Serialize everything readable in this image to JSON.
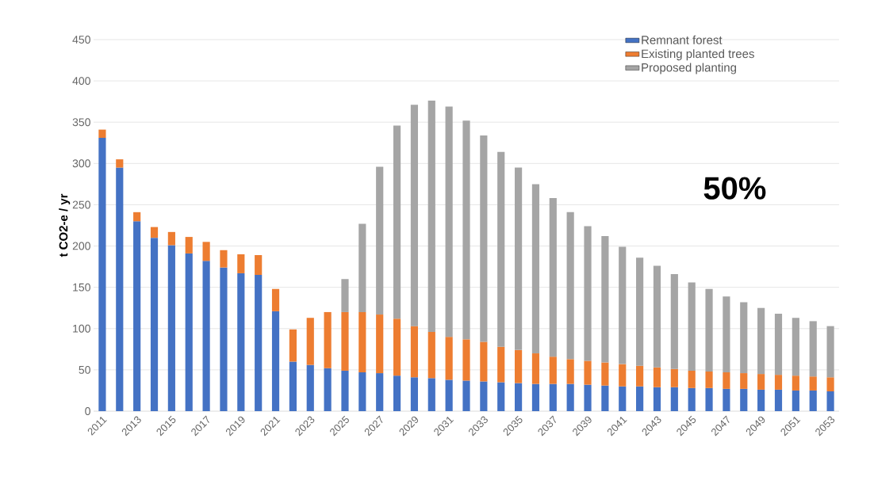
{
  "chart_data": {
    "type": "bar",
    "stacked": true,
    "ylabel": "t CO2-e  / yr",
    "categories": [
      "2011",
      null,
      "2013",
      null,
      "2015",
      null,
      "2017",
      null,
      "2019",
      null,
      "2021",
      null,
      "2023",
      null,
      "2025",
      null,
      "2027",
      null,
      "2029",
      null,
      "2031",
      null,
      "2033",
      null,
      "2035",
      null,
      "2037",
      null,
      "2039",
      null,
      "2041",
      null,
      "2043",
      null,
      "2045",
      null,
      "2047",
      null,
      "2049",
      null,
      "2051",
      null,
      "2053"
    ],
    "series": [
      {
        "name": "Remnant forest",
        "color": "#4472c4",
        "values": [
          331,
          295,
          230,
          210,
          201,
          191,
          182,
          174,
          167,
          165,
          121,
          60,
          56,
          52,
          49,
          47,
          46,
          43,
          41,
          40,
          38,
          37,
          36,
          35,
          34,
          33,
          33,
          33,
          32,
          31,
          30,
          30,
          29,
          29,
          28,
          28,
          27,
          27,
          26,
          26,
          25,
          25,
          24
        ]
      },
      {
        "name": "Existing planted trees",
        "color": "#ed7d31",
        "values": [
          10,
          10,
          11,
          13,
          16,
          20,
          23,
          21,
          23,
          24,
          27,
          39,
          57,
          68,
          71,
          73,
          71,
          69,
          62,
          56,
          52,
          50,
          48,
          43,
          40,
          37,
          33,
          30,
          29,
          28,
          27,
          25,
          24,
          22,
          21,
          20,
          20,
          19,
          19,
          18,
          18,
          17,
          17
        ]
      },
      {
        "name": "Proposed planting",
        "color": "#a5a5a5",
        "values": [
          null,
          null,
          null,
          null,
          null,
          null,
          null,
          null,
          null,
          null,
          null,
          null,
          null,
          null,
          40,
          107,
          179,
          234,
          268,
          280,
          279,
          265,
          250,
          236,
          221,
          205,
          192,
          178,
          163,
          153,
          142,
          131,
          123,
          115,
          107,
          100,
          92,
          86,
          80,
          74,
          70,
          67,
          62
        ]
      }
    ],
    "ylim": [
      0,
      450
    ],
    "yticks": [
      0,
      50,
      100,
      150,
      200,
      250,
      300,
      350,
      400,
      450
    ],
    "grid": "y",
    "legend": "top right",
    "annotations": [
      "50%"
    ]
  }
}
